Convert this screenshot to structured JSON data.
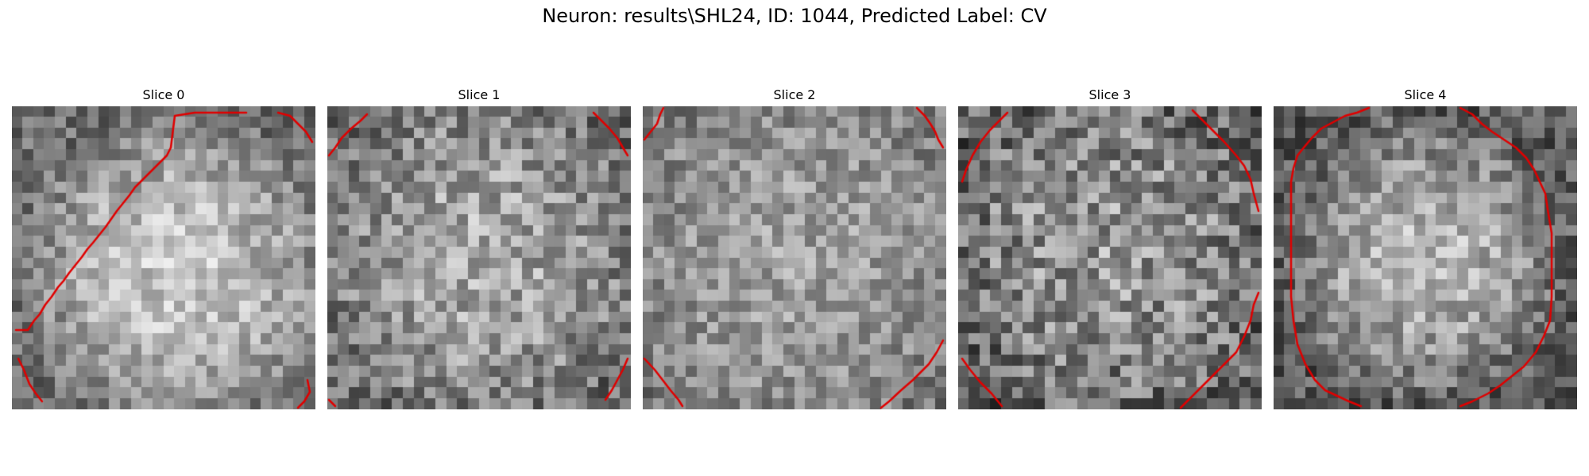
{
  "figure": {
    "title": "Neuron: results\\SHL24, ID: 1044, Predicted Label: CV"
  },
  "panels": [
    {
      "title": "Slice 0",
      "contour_color": "#e00000",
      "image": "grayscale-noise-patch"
    },
    {
      "title": "Slice 1",
      "contour_color": "#e00000",
      "image": "grayscale-noise-patch"
    },
    {
      "title": "Slice 2",
      "contour_color": "#e00000",
      "image": "grayscale-noise-patch"
    },
    {
      "title": "Slice 3",
      "contour_color": "#e00000",
      "image": "grayscale-noise-patch"
    },
    {
      "title": "Slice 4",
      "contour_color": "#e00000",
      "image": "grayscale-noise-patch"
    }
  ]
}
